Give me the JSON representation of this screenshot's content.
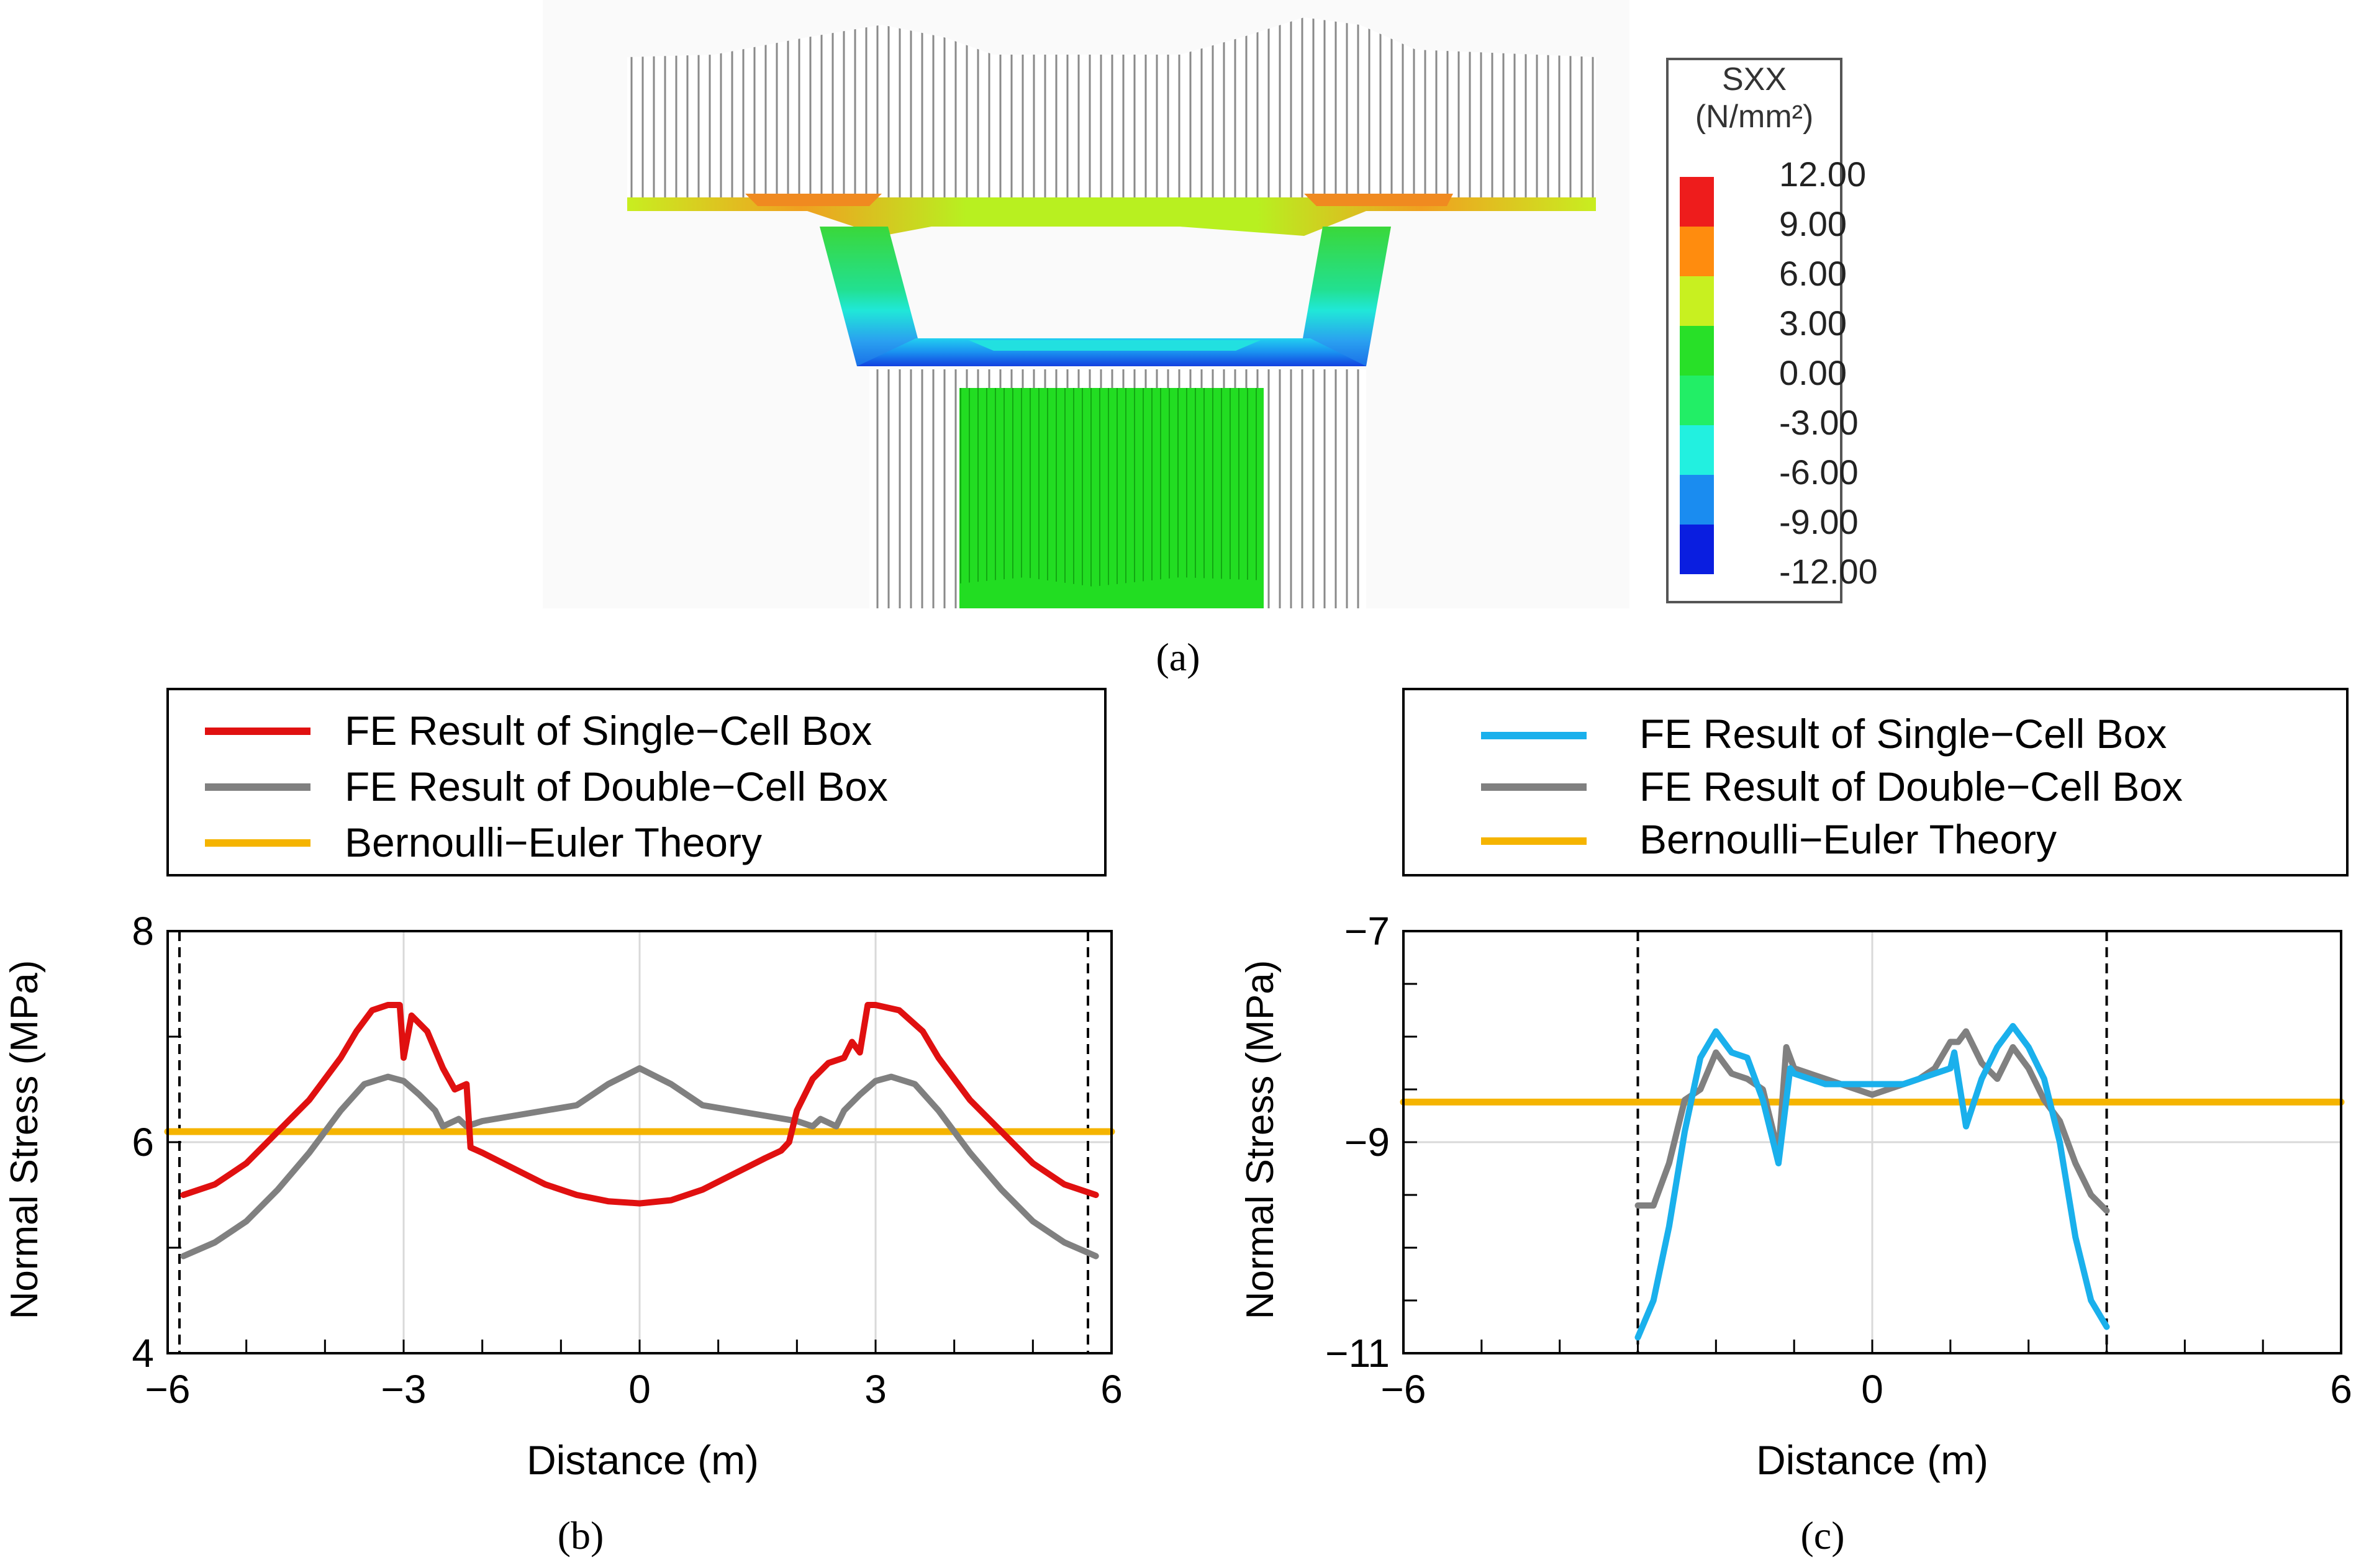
{
  "panel_a": {
    "caption": "(a)",
    "legend_title_line1": "SXX",
    "legend_title_line2": "(N/mm²)",
    "legend_levels": [
      "12.00",
      "9.00",
      "6.00",
      "3.00",
      "0.00",
      "-3.00",
      "-6.00",
      "-9.00",
      "-12.00"
    ],
    "legend_colors": [
      "#ee1c1c",
      "#ff8c0e",
      "#c8f020",
      "#28e028",
      "#22ee66",
      "#22f0e0",
      "#1a8cf0",
      "#0a1ee0"
    ]
  },
  "chart_data": [
    {
      "type": "line",
      "panel": "b",
      "caption": "(b)",
      "xlabel": "Distance (m)",
      "ylabel": "Normal Stress (MPa)",
      "xlim": [
        -6,
        6
      ],
      "ylim": [
        4,
        8
      ],
      "xticks": [
        "−6",
        "−3",
        "0",
        "3",
        "6"
      ],
      "yticks": [
        "4",
        "6",
        "8"
      ],
      "grid": true,
      "vlines": [
        -5.85,
        5.7
      ],
      "legend": [
        "FE Result of Single−Cell Box",
        "FE Result of Double−Cell Box",
        "Bernoulli−Euler Theory"
      ],
      "series": [
        {
          "name": "FE Result of Single−Cell Box",
          "color": "#e01010",
          "x": [
            -5.8,
            -5.4,
            -5.0,
            -4.6,
            -4.2,
            -3.8,
            -3.6,
            -3.4,
            -3.2,
            -3.05,
            -3.0,
            -2.9,
            -2.7,
            -2.5,
            -2.35,
            -2.2,
            -2.15,
            -2.0,
            -1.6,
            -1.2,
            -0.8,
            -0.4,
            0.0,
            0.4,
            0.8,
            1.2,
            1.6,
            1.8,
            1.9,
            2.0,
            2.2,
            2.4,
            2.6,
            2.7,
            2.8,
            2.9,
            3.0,
            3.3,
            3.6,
            3.8,
            4.2,
            4.6,
            5.0,
            5.4,
            5.8
          ],
          "y": [
            5.5,
            5.6,
            5.8,
            6.1,
            6.4,
            6.8,
            7.05,
            7.25,
            7.3,
            7.3,
            6.8,
            7.2,
            7.05,
            6.7,
            6.5,
            6.55,
            5.95,
            5.9,
            5.75,
            5.6,
            5.5,
            5.44,
            5.42,
            5.45,
            5.55,
            5.7,
            5.85,
            5.92,
            6.0,
            6.3,
            6.6,
            6.75,
            6.8,
            6.95,
            6.85,
            7.3,
            7.3,
            7.25,
            7.05,
            6.8,
            6.4,
            6.1,
            5.8,
            5.6,
            5.5
          ]
        },
        {
          "name": "FE Result of Double−Cell Box",
          "color": "#808080",
          "x": [
            -5.8,
            -5.4,
            -5.0,
            -4.6,
            -4.2,
            -3.8,
            -3.5,
            -3.2,
            -3.0,
            -2.8,
            -2.6,
            -2.5,
            -2.3,
            -2.2,
            -2.0,
            -1.6,
            -1.2,
            -0.8,
            -0.4,
            0.0,
            0.4,
            0.8,
            1.2,
            1.6,
            2.0,
            2.2,
            2.3,
            2.5,
            2.6,
            2.8,
            3.0,
            3.2,
            3.5,
            3.8,
            4.2,
            4.6,
            5.0,
            5.4,
            5.8
          ],
          "y": [
            4.92,
            5.05,
            5.25,
            5.55,
            5.9,
            6.3,
            6.55,
            6.62,
            6.58,
            6.45,
            6.3,
            6.15,
            6.22,
            6.15,
            6.2,
            6.25,
            6.3,
            6.35,
            6.55,
            6.7,
            6.55,
            6.35,
            6.3,
            6.25,
            6.2,
            6.15,
            6.22,
            6.15,
            6.3,
            6.45,
            6.58,
            6.62,
            6.55,
            6.3,
            5.9,
            5.55,
            5.25,
            5.05,
            4.92
          ]
        },
        {
          "name": "Bernoulli−Euler Theory",
          "color": "#f5b400",
          "x": [
            -6,
            6
          ],
          "y": [
            6.1,
            6.1
          ]
        }
      ]
    },
    {
      "type": "line",
      "panel": "c",
      "caption": "(c)",
      "xlabel": "Distance (m)",
      "ylabel": "Normal Stress (MPa)",
      "xlim": [
        -6,
        6
      ],
      "ylim": [
        -11,
        -7
      ],
      "xticks": [
        "−6",
        "0",
        "6"
      ],
      "yticks": [
        "−11",
        "−9",
        "−7"
      ],
      "grid": true,
      "vlines": [
        -3.0,
        3.0
      ],
      "legend": [
        "FE Result of Single−Cell Box",
        "FE Result of Double−Cell Box",
        "Bernoulli−Euler Theory"
      ],
      "series": [
        {
          "name": "FE Result of Single−Cell Box",
          "color": "#1ab0ec",
          "x": [
            -3.0,
            -2.8,
            -2.6,
            -2.4,
            -2.2,
            -2.0,
            -1.8,
            -1.6,
            -1.4,
            -1.2,
            -1.05,
            -1.0,
            -0.8,
            -0.6,
            -0.4,
            -0.2,
            0.0,
            0.2,
            0.4,
            0.6,
            0.8,
            1.0,
            1.05,
            1.2,
            1.4,
            1.6,
            1.8,
            2.0,
            2.2,
            2.4,
            2.6,
            2.8,
            3.0
          ],
          "y": [
            -10.85,
            -10.5,
            -9.8,
            -8.9,
            -8.2,
            -7.95,
            -8.15,
            -8.2,
            -8.6,
            -9.2,
            -8.3,
            -8.35,
            -8.4,
            -8.45,
            -8.45,
            -8.45,
            -8.45,
            -8.45,
            -8.45,
            -8.4,
            -8.35,
            -8.3,
            -8.15,
            -8.85,
            -8.4,
            -8.1,
            -7.9,
            -8.1,
            -8.4,
            -9.0,
            -9.9,
            -10.5,
            -10.75
          ]
        },
        {
          "name": "FE Result of Double−Cell Box",
          "color": "#808080",
          "x": [
            -3.0,
            -2.8,
            -2.6,
            -2.4,
            -2.2,
            -2.0,
            -1.8,
            -1.6,
            -1.4,
            -1.2,
            -1.1,
            -1.0,
            -0.8,
            -0.6,
            -0.4,
            -0.2,
            0.0,
            0.2,
            0.4,
            0.6,
            0.8,
            1.0,
            1.1,
            1.2,
            1.4,
            1.6,
            1.8,
            2.0,
            2.2,
            2.4,
            2.6,
            2.8,
            3.0
          ],
          "y": [
            -9.6,
            -9.6,
            -9.2,
            -8.6,
            -8.5,
            -8.15,
            -8.35,
            -8.4,
            -8.5,
            -9.1,
            -8.1,
            -8.3,
            -8.35,
            -8.4,
            -8.45,
            -8.5,
            -8.55,
            -8.5,
            -8.45,
            -8.4,
            -8.3,
            -8.05,
            -8.05,
            -7.95,
            -8.25,
            -8.4,
            -8.1,
            -8.3,
            -8.6,
            -8.8,
            -9.2,
            -9.5,
            -9.65
          ]
        },
        {
          "name": "Bernoulli−Euler Theory",
          "color": "#f5b400",
          "x": [
            -6,
            6
          ],
          "y": [
            -8.62,
            -8.62
          ]
        }
      ]
    }
  ]
}
